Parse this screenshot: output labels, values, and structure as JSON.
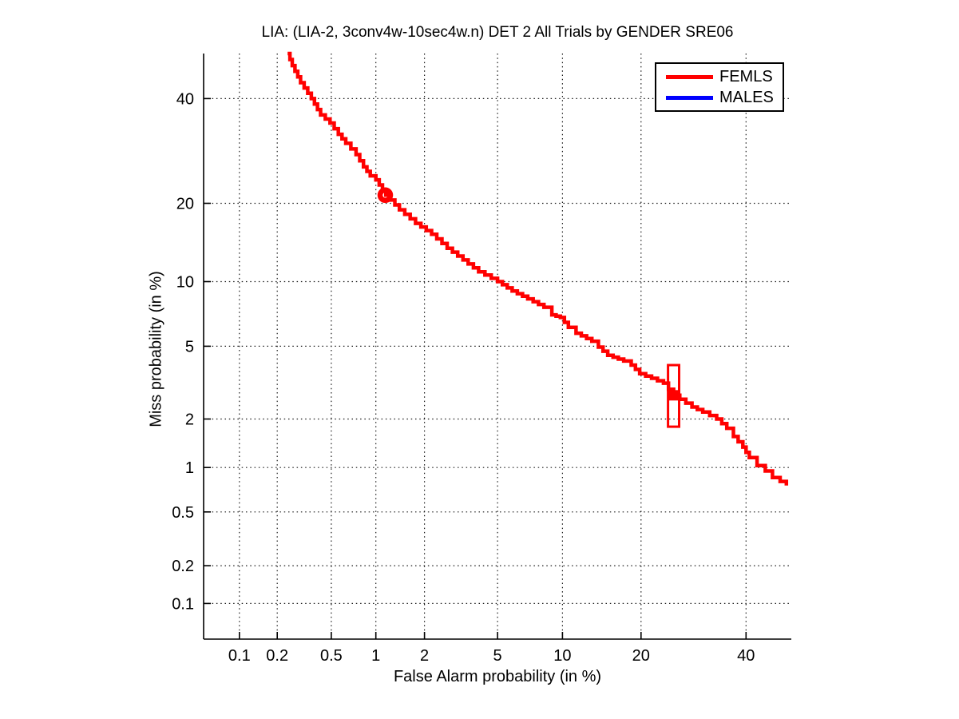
{
  "chart_data": {
    "type": "line",
    "subtype": "DET-curve",
    "title": "LIA: (LIA-2, 3conv4w-10sec4w.n) DET 2 All Trials by GENDER SRE06",
    "xlabel": "False Alarm probability (in %)",
    "ylabel": "Miss probability (in %)",
    "scale": "probit-both-axes",
    "grid": "dotted",
    "xlim_pct": [
      0.05,
      50
    ],
    "ylim_pct": [
      0.05,
      50
    ],
    "x_ticks_pct": [
      0.1,
      0.2,
      0.5,
      1,
      2,
      5,
      10,
      20,
      40
    ],
    "x_tick_labels": [
      "0.1",
      "0.2",
      "0.5",
      "1",
      "2",
      "5",
      "10",
      "20",
      "40"
    ],
    "y_ticks_pct": [
      0.1,
      0.2,
      0.5,
      1,
      2,
      5,
      10,
      20,
      40
    ],
    "y_tick_labels": [
      "0.1",
      "0.2",
      "0.5",
      "1",
      "2",
      "5",
      "10",
      "20",
      "40"
    ],
    "legend": {
      "position": "top-right",
      "entries": [
        {
          "label": "FEMLS",
          "color": "#ff0000"
        },
        {
          "label": "MALES",
          "color": "#0000ff"
        }
      ]
    },
    "series": [
      {
        "name": "FEMLS",
        "color": "#ff0000",
        "style": "staircase",
        "points_fa_miss_pct": [
          [
            0.24,
            50.0
          ],
          [
            0.26,
            47.3
          ],
          [
            0.3,
            43.5
          ],
          [
            0.36,
            40.0
          ],
          [
            0.42,
            36.5
          ],
          [
            0.49,
            34.8
          ],
          [
            0.56,
            32.5
          ],
          [
            0.63,
            30.7
          ],
          [
            0.74,
            28.5
          ],
          [
            0.83,
            26.2
          ],
          [
            0.92,
            24.6
          ],
          [
            1.0,
            23.9
          ],
          [
            1.16,
            21.3
          ],
          [
            1.41,
            19.0
          ],
          [
            1.77,
            17.0
          ],
          [
            2.2,
            15.5
          ],
          [
            2.7,
            13.7
          ],
          [
            3.3,
            12.3
          ],
          [
            4.0,
            11.0
          ],
          [
            5.0,
            10.0
          ],
          [
            5.9,
            9.1
          ],
          [
            7.0,
            8.4
          ],
          [
            8.3,
            7.7
          ],
          [
            9.0,
            7.1
          ],
          [
            9.8,
            6.9
          ],
          [
            10.6,
            6.2
          ],
          [
            11.4,
            5.8
          ],
          [
            13.2,
            5.3
          ],
          [
            14.0,
            4.95
          ],
          [
            15.2,
            4.5
          ],
          [
            17.4,
            4.2
          ],
          [
            18.5,
            4.0
          ],
          [
            19.8,
            3.6
          ],
          [
            21.7,
            3.4
          ],
          [
            23.7,
            3.2
          ],
          [
            25.5,
            2.74
          ],
          [
            28.9,
            2.35
          ],
          [
            31.0,
            2.2
          ],
          [
            33.8,
            2.0
          ],
          [
            35.9,
            1.76
          ],
          [
            37.3,
            1.57
          ],
          [
            39.3,
            1.35
          ],
          [
            40.7,
            1.16
          ],
          [
            42.4,
            1.03
          ],
          [
            44.2,
            0.95
          ],
          [
            45.8,
            0.86
          ],
          [
            47.5,
            0.81
          ],
          [
            48.9,
            0.76
          ]
        ]
      },
      {
        "name": "MALES",
        "color": "#0000ff",
        "style": "staircase",
        "visible_in_axes": false,
        "points_fa_miss_pct": []
      }
    ],
    "markers": [
      {
        "type": "circle-outline",
        "series": "FEMLS",
        "color": "#ff0000",
        "fa_pct": 1.15,
        "miss_pct": 21.3
      },
      {
        "type": "filled-square-with-box",
        "series": "FEMLS",
        "color": "#ff0000",
        "fa_pct": 25.5,
        "miss_pct": 2.74,
        "box_fa_pct": [
          24.5,
          26.5
        ],
        "box_miss_pct": [
          1.8,
          4.0
        ]
      }
    ]
  }
}
